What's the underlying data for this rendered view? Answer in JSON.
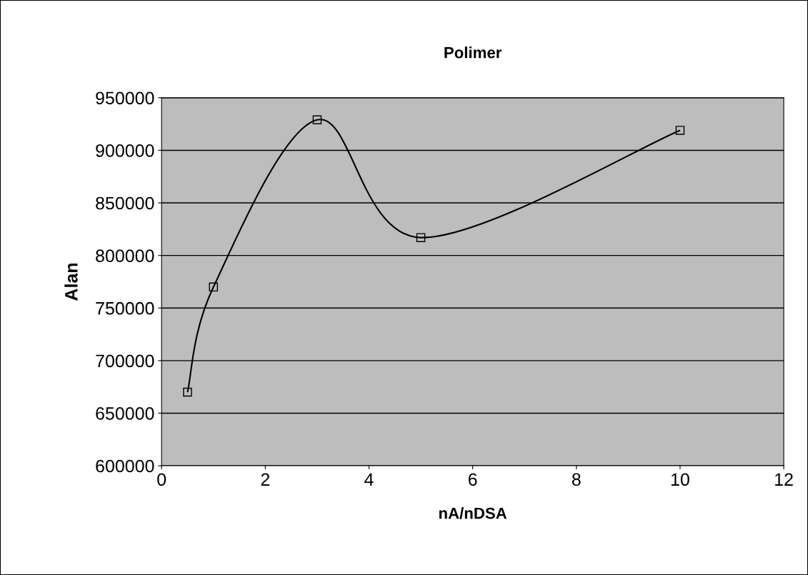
{
  "chart_data": {
    "type": "line",
    "title": "Polimer",
    "xlabel": "nA/nDSA",
    "ylabel": "Alan",
    "x": [
      0.5,
      1,
      3,
      5,
      10
    ],
    "series": [
      {
        "color": "#000000",
        "values": [
          670000,
          770000,
          929000,
          817000,
          919000
        ]
      }
    ],
    "xlim": [
      0,
      12
    ],
    "xticks": [
      0,
      2,
      4,
      6,
      8,
      10,
      12
    ],
    "ylim": [
      600000,
      950000
    ],
    "yticks": [
      600000,
      650000,
      700000,
      750000,
      800000,
      850000,
      900000,
      950000
    ],
    "grid": "y",
    "marker": "square",
    "line_style": "solid",
    "legend": false
  }
}
